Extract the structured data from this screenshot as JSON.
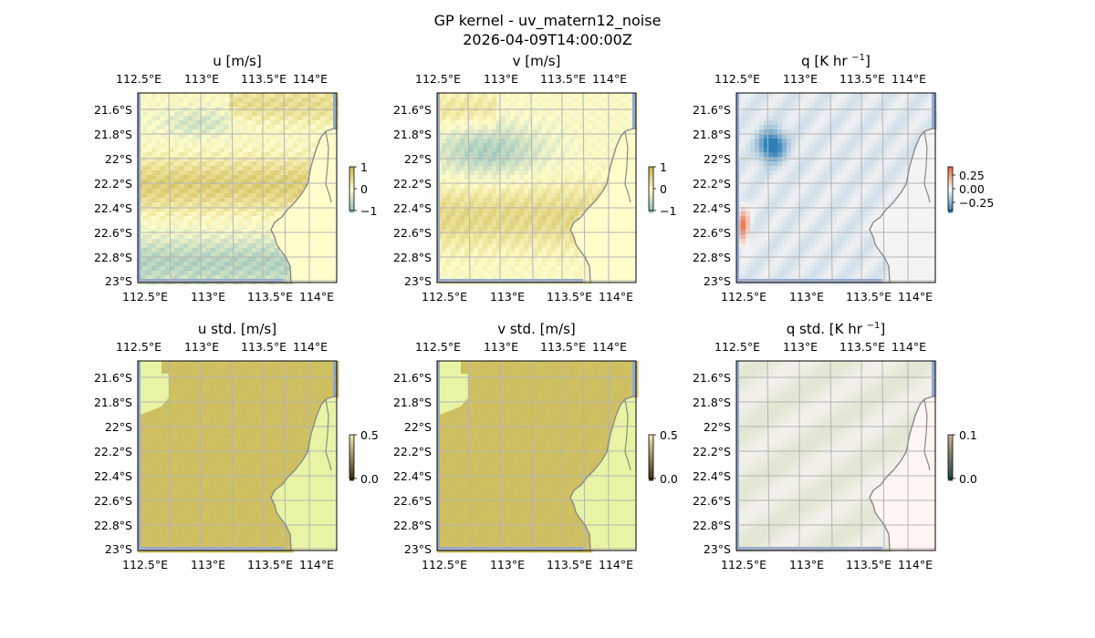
{
  "figure": {
    "title_line1": "GP kernel - uv_matern12_noise",
    "title_line2": "2026-04-09T14:00:00Z"
  },
  "colors": {
    "ocean": "#93a7d2",
    "land": "#fffdca",
    "land_std": "#e8f4a4",
    "coast": "#8a8a8a",
    "grid": "#b4b4b4",
    "u_neg": "#8fbdbb",
    "u_pos": "#cdb84f",
    "std_fill": "#cfc062",
    "q_pos": "#ee6a3a",
    "q_neg": "#2d7fb6",
    "q_bg": "#f4f4f4",
    "qstd_bg": "#f2f0ea",
    "qstd_land": "#fff5f2"
  },
  "chart_data": [
    {
      "type": "heatmap",
      "title": "u [m/s]",
      "x_ticks": [
        "112.5°E",
        "113°E",
        "113.5°E",
        "114°E"
      ],
      "y_ticks": [
        "21.6°S",
        "21.8°S",
        "22°S",
        "22.2°S",
        "22.4°S",
        "22.6°S",
        "22.8°S",
        "23°S"
      ],
      "xlim": [
        112.45,
        114.2
      ],
      "ylim": [
        -23.0,
        -21.46
      ],
      "colorbar": {
        "ticks": [
          "1",
          "0",
          "−1"
        ],
        "range": [
          -1,
          1
        ]
      }
    },
    {
      "type": "heatmap",
      "title": "v [m/s]",
      "x_ticks": [
        "112.5°E",
        "113°E",
        "113.5°E",
        "114°E"
      ],
      "y_ticks": [
        "21.6°S",
        "21.8°S",
        "22°S",
        "22.2°S",
        "22.4°S",
        "22.6°S",
        "22.8°S",
        "23°S"
      ],
      "xlim": [
        112.45,
        114.2
      ],
      "ylim": [
        -23.0,
        -21.46
      ],
      "colorbar": {
        "ticks": [
          "1",
          "0",
          "−1"
        ],
        "range": [
          -1,
          1
        ]
      }
    },
    {
      "type": "heatmap",
      "title": "q [K hr ",
      "title_sup": "−1",
      "title_end": "]",
      "x_ticks": [
        "112.5°E",
        "113°E",
        "113.5°E",
        "114°E"
      ],
      "y_ticks": [
        "21.6°S",
        "21.8°S",
        "22°S",
        "22.2°S",
        "22.4°S",
        "22.6°S",
        "22.8°S",
        "23°S"
      ],
      "xlim": [
        112.45,
        114.2
      ],
      "ylim": [
        -23.0,
        -21.46
      ],
      "colorbar": {
        "ticks": [
          "0.25",
          "0.00",
          "−0.25"
        ],
        "range": [
          -0.35,
          0.35
        ]
      }
    },
    {
      "type": "heatmap",
      "title": "u std. [m/s]",
      "x_ticks": [
        "112.5°E",
        "113°E",
        "113.5°E",
        "114°E"
      ],
      "y_ticks": [
        "21.6°S",
        "21.8°S",
        "22°S",
        "22.2°S",
        "22.4°S",
        "22.6°S",
        "22.8°S",
        "23°S"
      ],
      "xlim": [
        112.45,
        114.2
      ],
      "ylim": [
        -23.0,
        -21.46
      ],
      "colorbar": {
        "ticks": [
          "0.5",
          "0.0"
        ],
        "range": [
          0,
          0.5
        ]
      }
    },
    {
      "type": "heatmap",
      "title": "v std. [m/s]",
      "x_ticks": [
        "112.5°E",
        "113°E",
        "113.5°E",
        "114°E"
      ],
      "y_ticks": [
        "21.6°S",
        "21.8°S",
        "22°S",
        "22.2°S",
        "22.4°S",
        "22.6°S",
        "22.8°S",
        "23°S"
      ],
      "xlim": [
        112.45,
        114.2
      ],
      "ylim": [
        -23.0,
        -21.46
      ],
      "colorbar": {
        "ticks": [
          "0.5",
          "0.0"
        ],
        "range": [
          0,
          0.5
        ]
      }
    },
    {
      "type": "heatmap",
      "title": "q std. [K hr ",
      "title_sup": "−1",
      "title_end": "]",
      "x_ticks": [
        "112.5°E",
        "113°E",
        "113.5°E",
        "114°E"
      ],
      "y_ticks": [
        "21.6°S",
        "21.8°S",
        "22°S",
        "22.2°S",
        "22.4°S",
        "22.6°S",
        "22.8°S",
        "23°S"
      ],
      "xlim": [
        112.45,
        114.2
      ],
      "ylim": [
        -23.0,
        -21.46
      ],
      "colorbar": {
        "ticks": [
          "0.1",
          "0.0"
        ],
        "range": [
          0,
          0.1
        ]
      }
    }
  ]
}
